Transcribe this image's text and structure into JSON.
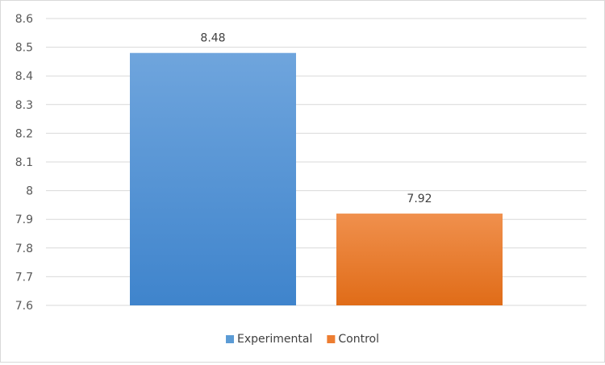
{
  "chart_data": {
    "type": "bar",
    "categories": [
      ""
    ],
    "series": [
      {
        "name": "Experimental",
        "values": [
          8.48
        ],
        "color": "#5b9bd5"
      },
      {
        "name": "Control",
        "values": [
          7.92
        ],
        "color": "#ed7d31"
      }
    ],
    "data_labels": [
      "8.48",
      "7.92"
    ],
    "y_ticks": [
      "8.6",
      "8.5",
      "8.4",
      "8.3",
      "8.2",
      "8.1",
      "8",
      "7.9",
      "7.8",
      "7.7",
      "7.6"
    ],
    "ylim": [
      7.6,
      8.6
    ],
    "grid": true,
    "legend": "bottom"
  }
}
